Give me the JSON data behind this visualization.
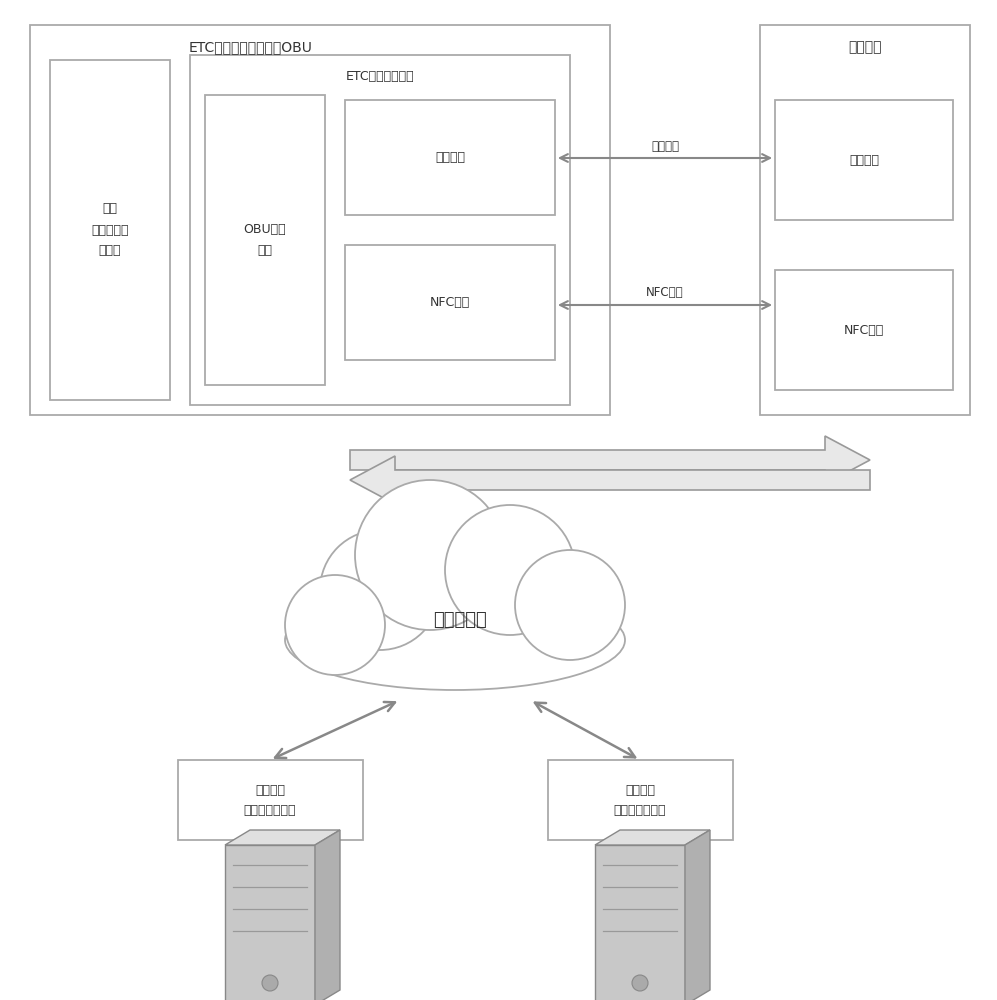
{
  "bg_color": "#ffffff",
  "text_color": "#333333",
  "box_edge_color": "#aaaaaa",
  "box_fill_color": "#ffffff",
  "title_obu": "ETC电子标签车载单元OBU",
  "title_mobile": "移动终端",
  "label_user_card": "支持\n电子錢包的\n用户卡",
  "label_etc_device": "ETC电子标签设备",
  "label_obu_security": "OBU安全\n模块",
  "label_bluetooth_module_l": "蓝牙模块",
  "label_nfc_tag": "NFC标签",
  "label_bluetooth_comm": "蓝牙通讯",
  "label_nfc_comm": "NFC通讯",
  "label_bluetooth_module_r": "蓝牙模块",
  "label_nfc_module_r": "NFC模块",
  "label_cloud": "移动互联网",
  "label_server1": "标签发行\n认证加密服务器",
  "label_server2": "标签储値\n认证加密服务器",
  "arrow_color": "#888888",
  "fat_arrow_color": "#cccccc",
  "fat_arrow_edge": "#888888"
}
